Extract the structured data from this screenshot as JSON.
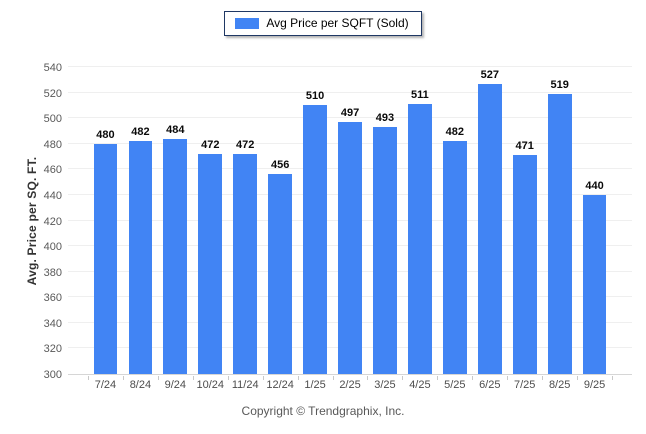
{
  "legend": {
    "label": "Avg Price per SQFT (Sold)",
    "swatch_color": "#4184F4"
  },
  "y_axis_title": "Avg. Price per SQ. FT.",
  "footer_text": "Copyright © Trendgraphix, Inc.",
  "colors": {
    "bar": "#4184F4",
    "legend_border": "#1F3864",
    "gridline": "#EFEFEF",
    "axis_line": "#D6D6D6",
    "tick_text": "#595959",
    "value_text": "#0a0a0a"
  },
  "chart_data": {
    "type": "bar",
    "title": "Avg Price per SQFT (Sold)",
    "categories": [
      "7/24",
      "8/24",
      "9/24",
      "10/24",
      "11/24",
      "12/24",
      "1/25",
      "2/25",
      "3/25",
      "4/25",
      "5/25",
      "6/25",
      "7/25",
      "8/25",
      "9/25"
    ],
    "values": [
      480,
      482,
      484,
      472,
      472,
      456,
      510,
      497,
      493,
      511,
      482,
      527,
      471,
      519,
      440
    ],
    "xlabel": "",
    "ylabel": "Avg. Price per SQ. FT.",
    "ylim": [
      300,
      540
    ],
    "ytick_step": 20,
    "grid": true,
    "legend_position": "top",
    "bar_color": "#4184F4"
  }
}
